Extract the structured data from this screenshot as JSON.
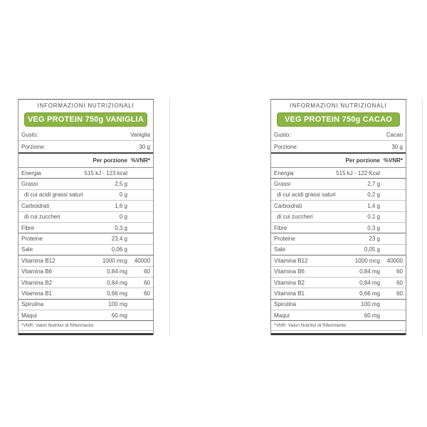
{
  "page": {
    "background": "#ffffff"
  },
  "colors": {
    "accent_green": "#8CB445",
    "accent_green_border": "#76A02F",
    "badge_text": "#ffffff",
    "body_text": "#515151",
    "strong_rule": "#454545",
    "light_rule": "#c8c8c8",
    "bottom_bar": "#3a3a3a"
  },
  "tables": [
    {
      "header": "INFORMAZIONI NUTRIZIONALI",
      "product": "VEG PROTEIN 750g VANIGLIA",
      "info_rows": [
        {
          "label": "Gusto:",
          "value": "Vaniglia"
        },
        {
          "label": "Porzione:",
          "value": "30 g"
        }
      ],
      "columns": {
        "per_portion": "Per porzione",
        "vnr": "%VNR*"
      },
      "rows": [
        {
          "label": "Energia",
          "amount": "515 kJ - 123 kcal",
          "vnr": "",
          "sep": true
        },
        {
          "label": "Grassi",
          "amount": "2,5 g",
          "vnr": ""
        },
        {
          "label": "di cui acidi grassi saturi",
          "amount": "0 g",
          "vnr": "",
          "indent": true
        },
        {
          "label": "Carboidrati",
          "amount": "1,6 g",
          "vnr": ""
        },
        {
          "label": "di cui zuccheri",
          "amount": "0 g",
          "vnr": "",
          "indent": true
        },
        {
          "label": "Fibre",
          "amount": "0,3 g",
          "vnr": "",
          "sep": true
        },
        {
          "label": "Proteine",
          "amount": "23,4 g",
          "vnr": ""
        },
        {
          "label": "Sale",
          "amount": "0,06 g",
          "vnr": "",
          "sep": true
        },
        {
          "label": "Vitamina B12",
          "amount": "1000 mcg",
          "vnr": "40000"
        },
        {
          "label": "Vitamina B6",
          "amount": "0,84 mg",
          "vnr": "60"
        },
        {
          "label": "Vitamina B2",
          "amount": "0,84 mg",
          "vnr": "60"
        },
        {
          "label": "Vitamina B1",
          "amount": "0,66 mg",
          "vnr": "60",
          "sep": true
        },
        {
          "label": "Spirulina",
          "amount": "100 mg",
          "vnr": ""
        },
        {
          "label": "Maqui",
          "amount": "60 mg",
          "vnr": "",
          "sep": true
        }
      ],
      "footnote": "*VNR: Valori Nutritivi di Riferimento"
    },
    {
      "header": "INFORMAZIONI NUTRIZIONALI",
      "product": "VEG PROTEIN 750g CACAO",
      "info_rows": [
        {
          "label": "Gusto:",
          "value": "Cacao"
        },
        {
          "label": "Porzione:",
          "value": "30 g"
        }
      ],
      "columns": {
        "per_portion": "Per porzione",
        "vnr": "%VNR*"
      },
      "rows": [
        {
          "label": "Energia",
          "amount": "515 kJ - 122 Kcal",
          "vnr": "",
          "sep": true
        },
        {
          "label": "Grassi",
          "amount": "2,7 g",
          "vnr": ""
        },
        {
          "label": "di cui acidi grassi saturi",
          "amount": "0,2 g",
          "vnr": "",
          "indent": true
        },
        {
          "label": "Carboidrati",
          "amount": "1,4 g",
          "vnr": ""
        },
        {
          "label": "di cui zuccheri",
          "amount": "0,1 g",
          "vnr": "",
          "indent": true
        },
        {
          "label": "Fibre",
          "amount": "0,3 g",
          "vnr": "",
          "sep": true
        },
        {
          "label": "Proteine",
          "amount": "23 g",
          "vnr": ""
        },
        {
          "label": "Sale",
          "amount": "0,05 g",
          "vnr": "",
          "sep": true
        },
        {
          "label": "Vitamina B12",
          "amount": "1000 mcg",
          "vnr": "40000"
        },
        {
          "label": "Vitamina B6",
          "amount": "0,84 mg",
          "vnr": "60"
        },
        {
          "label": "Vitamina B2",
          "amount": "0,84 mg",
          "vnr": "60"
        },
        {
          "label": "Vitamina B1",
          "amount": "0,66 mg",
          "vnr": "60",
          "sep": true
        },
        {
          "label": "Spirulina",
          "amount": "100 mg",
          "vnr": ""
        },
        {
          "label": "Maqui",
          "amount": "60 mg",
          "vnr": "",
          "sep": true
        }
      ],
      "footnote": "*VNR: Valori Nutritivi di Riferimento"
    }
  ]
}
